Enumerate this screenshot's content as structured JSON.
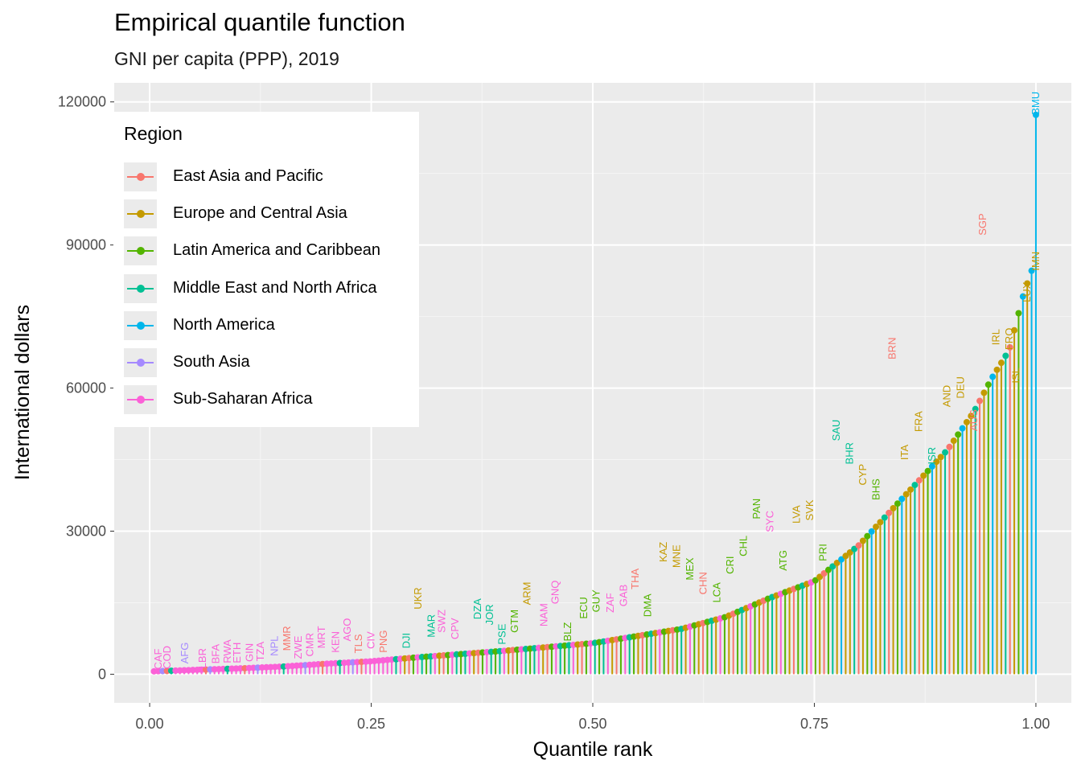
{
  "title": "Empirical quantile function",
  "subtitle": "GNI per capita (PPP), 2019",
  "chart_data": {
    "type": "lollipop",
    "xlabel": "Quantile rank",
    "ylabel": "International dollars",
    "xlim": [
      -0.04,
      1.04
    ],
    "ylim": [
      -6000,
      124000
    ],
    "x_ticks": [
      "0.00",
      "0.25",
      "0.50",
      "0.75",
      "1.00"
    ],
    "x_tick_values": [
      0,
      0.25,
      0.5,
      0.75,
      1.0
    ],
    "y_ticks": [
      "0",
      "30000",
      "60000",
      "90000",
      "120000"
    ],
    "y_tick_values": [
      0,
      30000,
      60000,
      90000,
      120000
    ],
    "grid": true,
    "legend": {
      "title": "Region",
      "placement": "top-left",
      "items": [
        {
          "name": "East Asia and Pacific",
          "color": "#F8766D"
        },
        {
          "name": "Europe and Central Asia",
          "color": "#C49A00"
        },
        {
          "name": "Latin America and Caribbean",
          "color": "#53B400"
        },
        {
          "name": "Middle East and North Africa",
          "color": "#00C094"
        },
        {
          "name": "North America",
          "color": "#00B6EB"
        },
        {
          "name": "South Asia",
          "color": "#A58AFF"
        },
        {
          "name": "Sub-Saharan Africa",
          "color": "#FB61D7"
        }
      ]
    },
    "labels": [
      {
        "text": "CAF",
        "x": 0.01,
        "y": 1000,
        "region": 6
      },
      {
        "text": "COD",
        "x": 0.02,
        "y": 1100,
        "region": 6
      },
      {
        "text": "AFG",
        "x": 0.04,
        "y": 2200,
        "region": 5
      },
      {
        "text": "LBR",
        "x": 0.06,
        "y": 1200,
        "region": 6
      },
      {
        "text": "BFA",
        "x": 0.075,
        "y": 2200,
        "region": 6
      },
      {
        "text": "RWA",
        "x": 0.088,
        "y": 2300,
        "region": 6
      },
      {
        "text": "ETH",
        "x": 0.099,
        "y": 2300,
        "region": 6
      },
      {
        "text": "GIN",
        "x": 0.113,
        "y": 2600,
        "region": 6
      },
      {
        "text": "TZA",
        "x": 0.125,
        "y": 2700,
        "region": 6
      },
      {
        "text": "NPL",
        "x": 0.141,
        "y": 3800,
        "region": 5
      },
      {
        "text": "MMR",
        "x": 0.155,
        "y": 4900,
        "region": 0
      },
      {
        "text": "ZWE",
        "x": 0.168,
        "y": 3200,
        "region": 6
      },
      {
        "text": "CMR",
        "x": 0.181,
        "y": 3700,
        "region": 6
      },
      {
        "text": "MRT",
        "x": 0.194,
        "y": 5400,
        "region": 6
      },
      {
        "text": "KEN",
        "x": 0.21,
        "y": 4500,
        "region": 6
      },
      {
        "text": "AGO",
        "x": 0.223,
        "y": 6900,
        "region": 6
      },
      {
        "text": "TLS",
        "x": 0.236,
        "y": 4400,
        "region": 0
      },
      {
        "text": "CIV",
        "x": 0.25,
        "y": 5300,
        "region": 6
      },
      {
        "text": "PNG",
        "x": 0.264,
        "y": 4500,
        "region": 0
      },
      {
        "text": "DJI",
        "x": 0.29,
        "y": 5400,
        "region": 3
      },
      {
        "text": "UKR",
        "x": 0.303,
        "y": 13600,
        "region": 1
      },
      {
        "text": "MAR",
        "x": 0.318,
        "y": 7700,
        "region": 3
      },
      {
        "text": "SWZ",
        "x": 0.33,
        "y": 8700,
        "region": 6
      },
      {
        "text": "CPV",
        "x": 0.345,
        "y": 7300,
        "region": 6
      },
      {
        "text": "DZA",
        "x": 0.37,
        "y": 11500,
        "region": 3
      },
      {
        "text": "JOR",
        "x": 0.384,
        "y": 10300,
        "region": 3
      },
      {
        "text": "PSE",
        "x": 0.398,
        "y": 6200,
        "region": 3
      },
      {
        "text": "GTM",
        "x": 0.412,
        "y": 8700,
        "region": 2
      },
      {
        "text": "ARM",
        "x": 0.426,
        "y": 14500,
        "region": 1
      },
      {
        "text": "NAM",
        "x": 0.445,
        "y": 10000,
        "region": 6
      },
      {
        "text": "GNQ",
        "x": 0.458,
        "y": 14700,
        "region": 6
      },
      {
        "text": "BLZ",
        "x": 0.472,
        "y": 6900,
        "region": 2
      },
      {
        "text": "ECU",
        "x": 0.49,
        "y": 11600,
        "region": 2
      },
      {
        "text": "GUY",
        "x": 0.504,
        "y": 13000,
        "region": 2
      },
      {
        "text": "ZAF",
        "x": 0.52,
        "y": 12900,
        "region": 6
      },
      {
        "text": "GAB",
        "x": 0.535,
        "y": 14200,
        "region": 6
      },
      {
        "text": "THA",
        "x": 0.548,
        "y": 17800,
        "region": 0
      },
      {
        "text": "DMA",
        "x": 0.562,
        "y": 12000,
        "region": 2
      },
      {
        "text": "KAZ",
        "x": 0.58,
        "y": 23500,
        "region": 1
      },
      {
        "text": "MNE",
        "x": 0.595,
        "y": 22300,
        "region": 1
      },
      {
        "text": "MEX",
        "x": 0.61,
        "y": 19700,
        "region": 2
      },
      {
        "text": "CHN",
        "x": 0.625,
        "y": 16700,
        "region": 0
      },
      {
        "text": "LCA",
        "x": 0.64,
        "y": 15000,
        "region": 2
      },
      {
        "text": "CRI",
        "x": 0.655,
        "y": 21000,
        "region": 2
      },
      {
        "text": "CHL",
        "x": 0.67,
        "y": 24700,
        "region": 2
      },
      {
        "text": "PAN",
        "x": 0.685,
        "y": 32500,
        "region": 2
      },
      {
        "text": "SYC",
        "x": 0.7,
        "y": 29800,
        "region": 6
      },
      {
        "text": "ATG",
        "x": 0.715,
        "y": 21700,
        "region": 2
      },
      {
        "text": "LVA",
        "x": 0.73,
        "y": 31600,
        "region": 1
      },
      {
        "text": "SVK",
        "x": 0.745,
        "y": 32200,
        "region": 1
      },
      {
        "text": "PRI",
        "x": 0.76,
        "y": 23700,
        "region": 2
      },
      {
        "text": "SAU",
        "x": 0.775,
        "y": 48900,
        "region": 3
      },
      {
        "text": "BHR",
        "x": 0.79,
        "y": 44000,
        "region": 3
      },
      {
        "text": "CYP",
        "x": 0.805,
        "y": 39600,
        "region": 1
      },
      {
        "text": "BHS",
        "x": 0.82,
        "y": 36500,
        "region": 2
      },
      {
        "text": "BRN",
        "x": 0.838,
        "y": 66000,
        "region": 0
      },
      {
        "text": "ITA",
        "x": 0.852,
        "y": 44900,
        "region": 1
      },
      {
        "text": "FRA",
        "x": 0.868,
        "y": 50800,
        "region": 1
      },
      {
        "text": "ISR",
        "x": 0.883,
        "y": 44000,
        "region": 3
      },
      {
        "text": "AND",
        "x": 0.9,
        "y": 56000,
        "region": 1
      },
      {
        "text": "DEU",
        "x": 0.915,
        "y": 57800,
        "region": 1
      },
      {
        "text": "AUS",
        "x": 0.93,
        "y": 51000,
        "region": 0
      },
      {
        "text": "SGP",
        "x": 0.94,
        "y": 92000,
        "region": 0
      },
      {
        "text": "IRL",
        "x": 0.955,
        "y": 69000,
        "region": 1
      },
      {
        "text": "FRO",
        "x": 0.97,
        "y": 68000,
        "region": 1
      },
      {
        "text": "ISL",
        "x": 0.978,
        "y": 61000,
        "region": 1
      },
      {
        "text": "LUX",
        "x": 0.99,
        "y": 78000,
        "region": 1
      },
      {
        "text": "IMN",
        "x": 1.0,
        "y": 84600,
        "region": 1
      },
      {
        "text": "BMU",
        "x": 1.0,
        "y": 117300,
        "region": 4
      }
    ],
    "quantile_curve": [
      [
        0.005,
        600
      ],
      [
        0.05,
        900
      ],
      [
        0.1,
        1200
      ],
      [
        0.15,
        1600
      ],
      [
        0.2,
        2200
      ],
      [
        0.25,
        2700
      ],
      [
        0.3,
        3500
      ],
      [
        0.35,
        4200
      ],
      [
        0.4,
        4900
      ],
      [
        0.45,
        5700
      ],
      [
        0.5,
        6500
      ],
      [
        0.55,
        8000
      ],
      [
        0.6,
        9500
      ],
      [
        0.65,
        12000
      ],
      [
        0.7,
        16000
      ],
      [
        0.75,
        19500
      ],
      [
        0.8,
        27000
      ],
      [
        0.85,
        37000
      ],
      [
        0.9,
        47000
      ],
      [
        0.93,
        55000
      ],
      [
        0.95,
        62000
      ],
      [
        0.97,
        68000
      ],
      [
        0.985,
        79000
      ],
      [
        0.995,
        84600
      ]
    ],
    "top_value": 117300
  }
}
